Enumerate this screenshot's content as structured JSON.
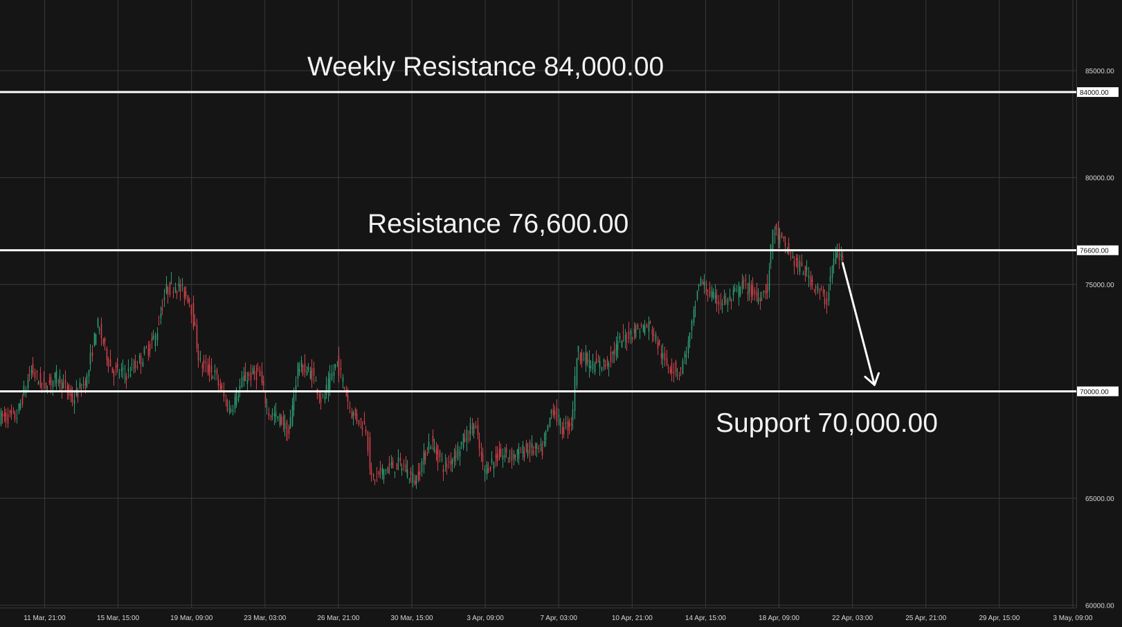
{
  "chart_data": {
    "type": "candlestick",
    "title": "",
    "xlabel": "",
    "ylabel": "",
    "ylim": [
      60000,
      86000
    ],
    "grid": true,
    "colors": {
      "background": "#151516",
      "grid": "#3a3a3d",
      "up": "#2e9e73",
      "down": "#d2434a",
      "level": "#ffffff"
    },
    "x_ticks": [
      "11 Mar, 21:00",
      "15 Mar, 15:00",
      "19 Mar, 09:00",
      "23 Mar, 03:00",
      "26 Mar, 21:00",
      "30 Mar, 15:00",
      "3 Apr, 09:00",
      "7 Apr, 03:00",
      "10 Apr, 21:00",
      "14 Apr, 15:00",
      "18 Apr, 09:00",
      "22 Apr, 03:00",
      "25 Apr, 21:00",
      "29 Apr, 15:00",
      "3 May, 09:00"
    ],
    "y_ticks": [
      {
        "value": 85000,
        "label": "85000.00"
      },
      {
        "value": 80000,
        "label": "80000.00"
      },
      {
        "value": 75000,
        "label": "75000.00"
      },
      {
        "value": 65000,
        "label": "65000.00"
      },
      {
        "value": 60000,
        "label": "60000.00"
      }
    ],
    "levels": [
      {
        "value": 84000,
        "axis_label": "84000.00",
        "annotation": "Weekly Resistance 84,000.00"
      },
      {
        "value": 76600,
        "axis_label": "76600.00",
        "annotation": "Resistance 76,600.00"
      },
      {
        "value": 70000,
        "axis_label": "70000.00",
        "annotation": "Support 70,000.00"
      }
    ],
    "projection_arrow": {
      "from": {
        "x": "21 Apr, 15:00",
        "y": 76000
      },
      "to": {
        "x": "23 Apr, 06:00",
        "y": 70300
      }
    },
    "price_path": [
      [
        "10 Mar, 12:00",
        68800
      ],
      [
        "11 Mar, 06:00",
        71000
      ],
      [
        "11 Mar, 21:00",
        70200
      ],
      [
        "12 Mar, 15:00",
        70700
      ],
      [
        "13 Mar, 09:00",
        69600
      ],
      [
        "14 Mar, 03:00",
        70600
      ],
      [
        "14 Mar, 15:00",
        73200
      ],
      [
        "15 Mar, 09:00",
        71000
      ],
      [
        "16 Mar, 03:00",
        70800
      ],
      [
        "16 Mar, 21:00",
        71500
      ],
      [
        "17 Mar, 15:00",
        72600
      ],
      [
        "18 Mar, 03:00",
        74700
      ],
      [
        "18 Mar, 15:00",
        75000
      ],
      [
        "19 Mar, 09:00",
        74300
      ],
      [
        "19 Mar, 21:00",
        71300
      ],
      [
        "20 Mar, 15:00",
        70800
      ],
      [
        "21 Mar, 09:00",
        69100
      ],
      [
        "22 Mar, 03:00",
        70600
      ],
      [
        "22 Mar, 21:00",
        70900
      ],
      [
        "23 Mar, 09:00",
        69000
      ],
      [
        "24 Mar, 03:00",
        68600
      ],
      [
        "24 Mar, 09:00",
        67800
      ],
      [
        "24 Mar, 21:00",
        71200
      ],
      [
        "25 Mar, 15:00",
        70800
      ],
      [
        "26 Mar, 03:00",
        69500
      ],
      [
        "26 Mar, 21:00",
        71400
      ],
      [
        "27 Mar, 15:00",
        69000
      ],
      [
        "28 Mar, 09:00",
        68300
      ],
      [
        "28 Mar, 15:00",
        65800
      ],
      [
        "29 Mar, 09:00",
        66400
      ],
      [
        "30 Mar, 03:00",
        66600
      ],
      [
        "30 Mar, 21:00",
        65800
      ],
      [
        "31 Mar, 15:00",
        67700
      ],
      [
        "1 Apr, 09:00",
        66400
      ],
      [
        "2 Apr, 03:00",
        67400
      ],
      [
        "2 Apr, 21:00",
        68500
      ],
      [
        "3 Apr, 09:00",
        66300
      ],
      [
        "4 Apr, 03:00",
        67000
      ],
      [
        "4 Apr, 21:00",
        67000
      ],
      [
        "5 Apr, 15:00",
        67300
      ],
      [
        "6 Apr, 09:00",
        67200
      ],
      [
        "6 Apr, 21:00",
        69300
      ],
      [
        "7 Apr, 09:00",
        68200
      ],
      [
        "7 Apr, 21:00",
        68600
      ],
      [
        "8 Apr, 03:00",
        71900
      ],
      [
        "8 Apr, 21:00",
        71200
      ],
      [
        "9 Apr, 15:00",
        71300
      ],
      [
        "10 Apr, 09:00",
        72400
      ],
      [
        "11 Apr, 03:00",
        72900
      ],
      [
        "11 Apr, 21:00",
        73100
      ],
      [
        "12 Apr, 15:00",
        71300
      ],
      [
        "13 Apr, 09:00",
        70900
      ],
      [
        "13 Apr, 21:00",
        72400
      ],
      [
        "14 Apr, 09:00",
        75200
      ],
      [
        "15 Apr, 03:00",
        74300
      ],
      [
        "15 Apr, 21:00",
        74200
      ],
      [
        "16 Apr, 15:00",
        75000
      ],
      [
        "17 Apr, 09:00",
        74400
      ],
      [
        "17 Apr, 21:00",
        74900
      ],
      [
        "18 Apr, 03:00",
        77600
      ],
      [
        "18 Apr, 21:00",
        76600
      ],
      [
        "19 Apr, 09:00",
        75900
      ],
      [
        "19 Apr, 21:00",
        75500
      ],
      [
        "20 Apr, 09:00",
        74800
      ],
      [
        "20 Apr, 21:00",
        74200
      ],
      [
        "21 Apr, 03:00",
        75700
      ],
      [
        "21 Apr, 09:00",
        76500
      ],
      [
        "21 Apr, 15:00",
        76200
      ]
    ]
  }
}
